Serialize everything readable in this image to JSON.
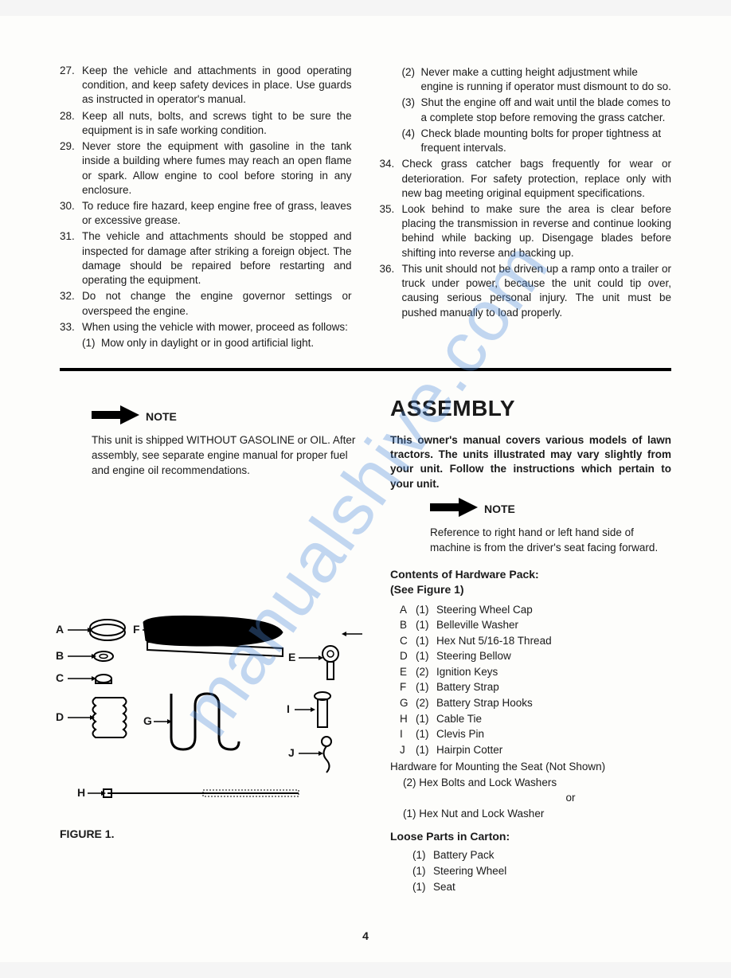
{
  "watermark": "manualshive.com",
  "left_items": [
    {
      "n": "27.",
      "t": "Keep the vehicle and attachments in good operating condition, and keep safety devices in place. Use guards as instructed in operator's manual."
    },
    {
      "n": "28.",
      "t": "Keep all nuts, bolts, and screws tight to be sure the equipment is in safe working condition."
    },
    {
      "n": "29.",
      "t": "Never store the equipment with gasoline in the tank inside a building where fumes may reach an open flame or spark. Allow engine to cool before storing in any enclosure."
    },
    {
      "n": "30.",
      "t": "To reduce fire hazard, keep engine free of grass, leaves or excessive grease."
    },
    {
      "n": "31.",
      "t": "The vehicle and attachments should be stopped and inspected for damage after striking a foreign object. The damage should be repaired before restarting and operating the equipment."
    },
    {
      "n": "32.",
      "t": "Do not change the engine governor settings or overspeed the engine."
    },
    {
      "n": "33.",
      "t": "When using the vehicle with mower, proceed as follows:"
    }
  ],
  "left_sub_33": [
    {
      "n": "(1)",
      "t": "Mow only in daylight or in good artificial light."
    }
  ],
  "right_sub_33": [
    {
      "n": "(2)",
      "t": "Never make a cutting height adjustment while engine is running if operator must dismount to do so."
    },
    {
      "n": "(3)",
      "t": "Shut the engine off and wait until the blade comes to a complete stop before removing the grass catcher."
    },
    {
      "n": "(4)",
      "t": "Check blade mounting bolts for proper tightness at frequent intervals."
    }
  ],
  "right_items": [
    {
      "n": "34.",
      "t": "Check grass catcher bags frequently for wear or deterioration. For safety protection, replace only with new bag meeting original equipment specifications."
    },
    {
      "n": "35.",
      "t": "Look behind to make sure the area is clear before placing the transmission in reverse and continue looking behind while backing up. Disengage blades before shifting into reverse and backing up."
    },
    {
      "n": "36.",
      "t": "This unit should not be driven up a ramp onto a trailer or truck under power, because the unit could tip over, causing serious personal injury. The unit must be pushed manually to load properly."
    }
  ],
  "note1_label": "NOTE",
  "note1_text": "This unit is shipped WITHOUT GASOLINE or OIL. After assembly, see separate engine manual for proper fuel and engine oil recommendations.",
  "assembly_title": "ASSEMBLY",
  "assembly_intro": "This owner's manual covers various models of lawn tractors. The units illustrated may vary slightly from your unit. Follow the instructions which pertain to your unit.",
  "note2_label": "NOTE",
  "note2_text": "Reference to right hand or left hand side of machine is from the driver's seat facing forward.",
  "contents_title1": "Contents of Hardware Pack:",
  "contents_title2": "(See Figure 1)",
  "hardware": [
    {
      "l": "A",
      "q": "(1)",
      "d": "Steering Wheel Cap"
    },
    {
      "l": "B",
      "q": "(1)",
      "d": "Belleville Washer"
    },
    {
      "l": "C",
      "q": "(1)",
      "d": "Hex Nut 5/16-18 Thread"
    },
    {
      "l": "D",
      "q": "(1)",
      "d": "Steering Bellow"
    },
    {
      "l": "E",
      "q": "(2)",
      "d": "Ignition Keys"
    },
    {
      "l": "F",
      "q": "(1)",
      "d": "Battery Strap"
    },
    {
      "l": "G",
      "q": "(2)",
      "d": "Battery Strap Hooks"
    },
    {
      "l": "H",
      "q": "(1)",
      "d": "Cable Tie"
    },
    {
      "l": "I",
      "q": "(1)",
      "d": "Clevis Pin"
    },
    {
      "l": "J",
      "q": "(1)",
      "d": "Hairpin Cotter"
    }
  ],
  "hw_mounting": "Hardware for Mounting the Seat (Not Shown)",
  "hw_bolts": "(2) Hex Bolts and Lock Washers",
  "hw_or": "or",
  "hw_nut": "(1) Hex Nut and Lock Washer",
  "loose_title": "Loose Parts in Carton:",
  "loose": [
    {
      "q": "(1)",
      "d": "Battery Pack"
    },
    {
      "q": "(1)",
      "d": "Steering Wheel"
    },
    {
      "q": "(1)",
      "d": "Seat"
    }
  ],
  "figure_caption": "FIGURE 1.",
  "fig_labels": {
    "A": "A",
    "B": "B",
    "C": "C",
    "D": "D",
    "E": "E",
    "F": "F",
    "G": "G",
    "H": "H",
    "I": "I",
    "J": "J"
  },
  "page_number": "4"
}
